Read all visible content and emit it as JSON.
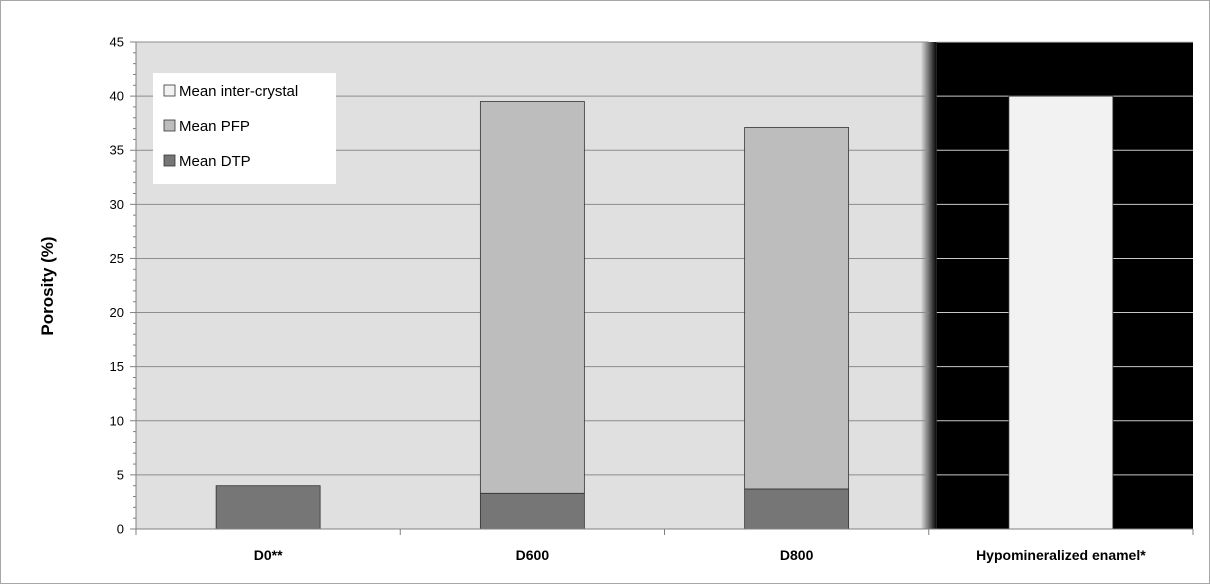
{
  "chart_data": {
    "type": "bar",
    "stacked": true,
    "categories": [
      "D0**",
      "D600",
      "D800",
      "Hypomineralized enamel*"
    ],
    "series": [
      {
        "name": "Mean DTP",
        "values": [
          4.0,
          3.3,
          3.7,
          0
        ],
        "color": "#767676"
      },
      {
        "name": "Mean PFP",
        "values": [
          0,
          36.2,
          33.4,
          0
        ],
        "color": "#bdbdbd"
      },
      {
        "name": "Mean inter-crystal",
        "values": [
          0,
          0,
          0,
          40.0
        ],
        "color": "#f2f2f2"
      }
    ],
    "legend_order": [
      "Mean inter-crystal",
      "Mean PFP",
      "Mean DTP"
    ],
    "ylabel": "Porosity (%)",
    "xlabel": "",
    "ylim": [
      0,
      45
    ],
    "yticks": [
      0,
      5,
      10,
      15,
      20,
      25,
      30,
      35,
      40,
      45
    ],
    "grid": true,
    "legend_position": "top-left",
    "plot_background": "#e0e0e0",
    "highlight_background": "#000000",
    "gridline_color": "#8c8c8c"
  }
}
